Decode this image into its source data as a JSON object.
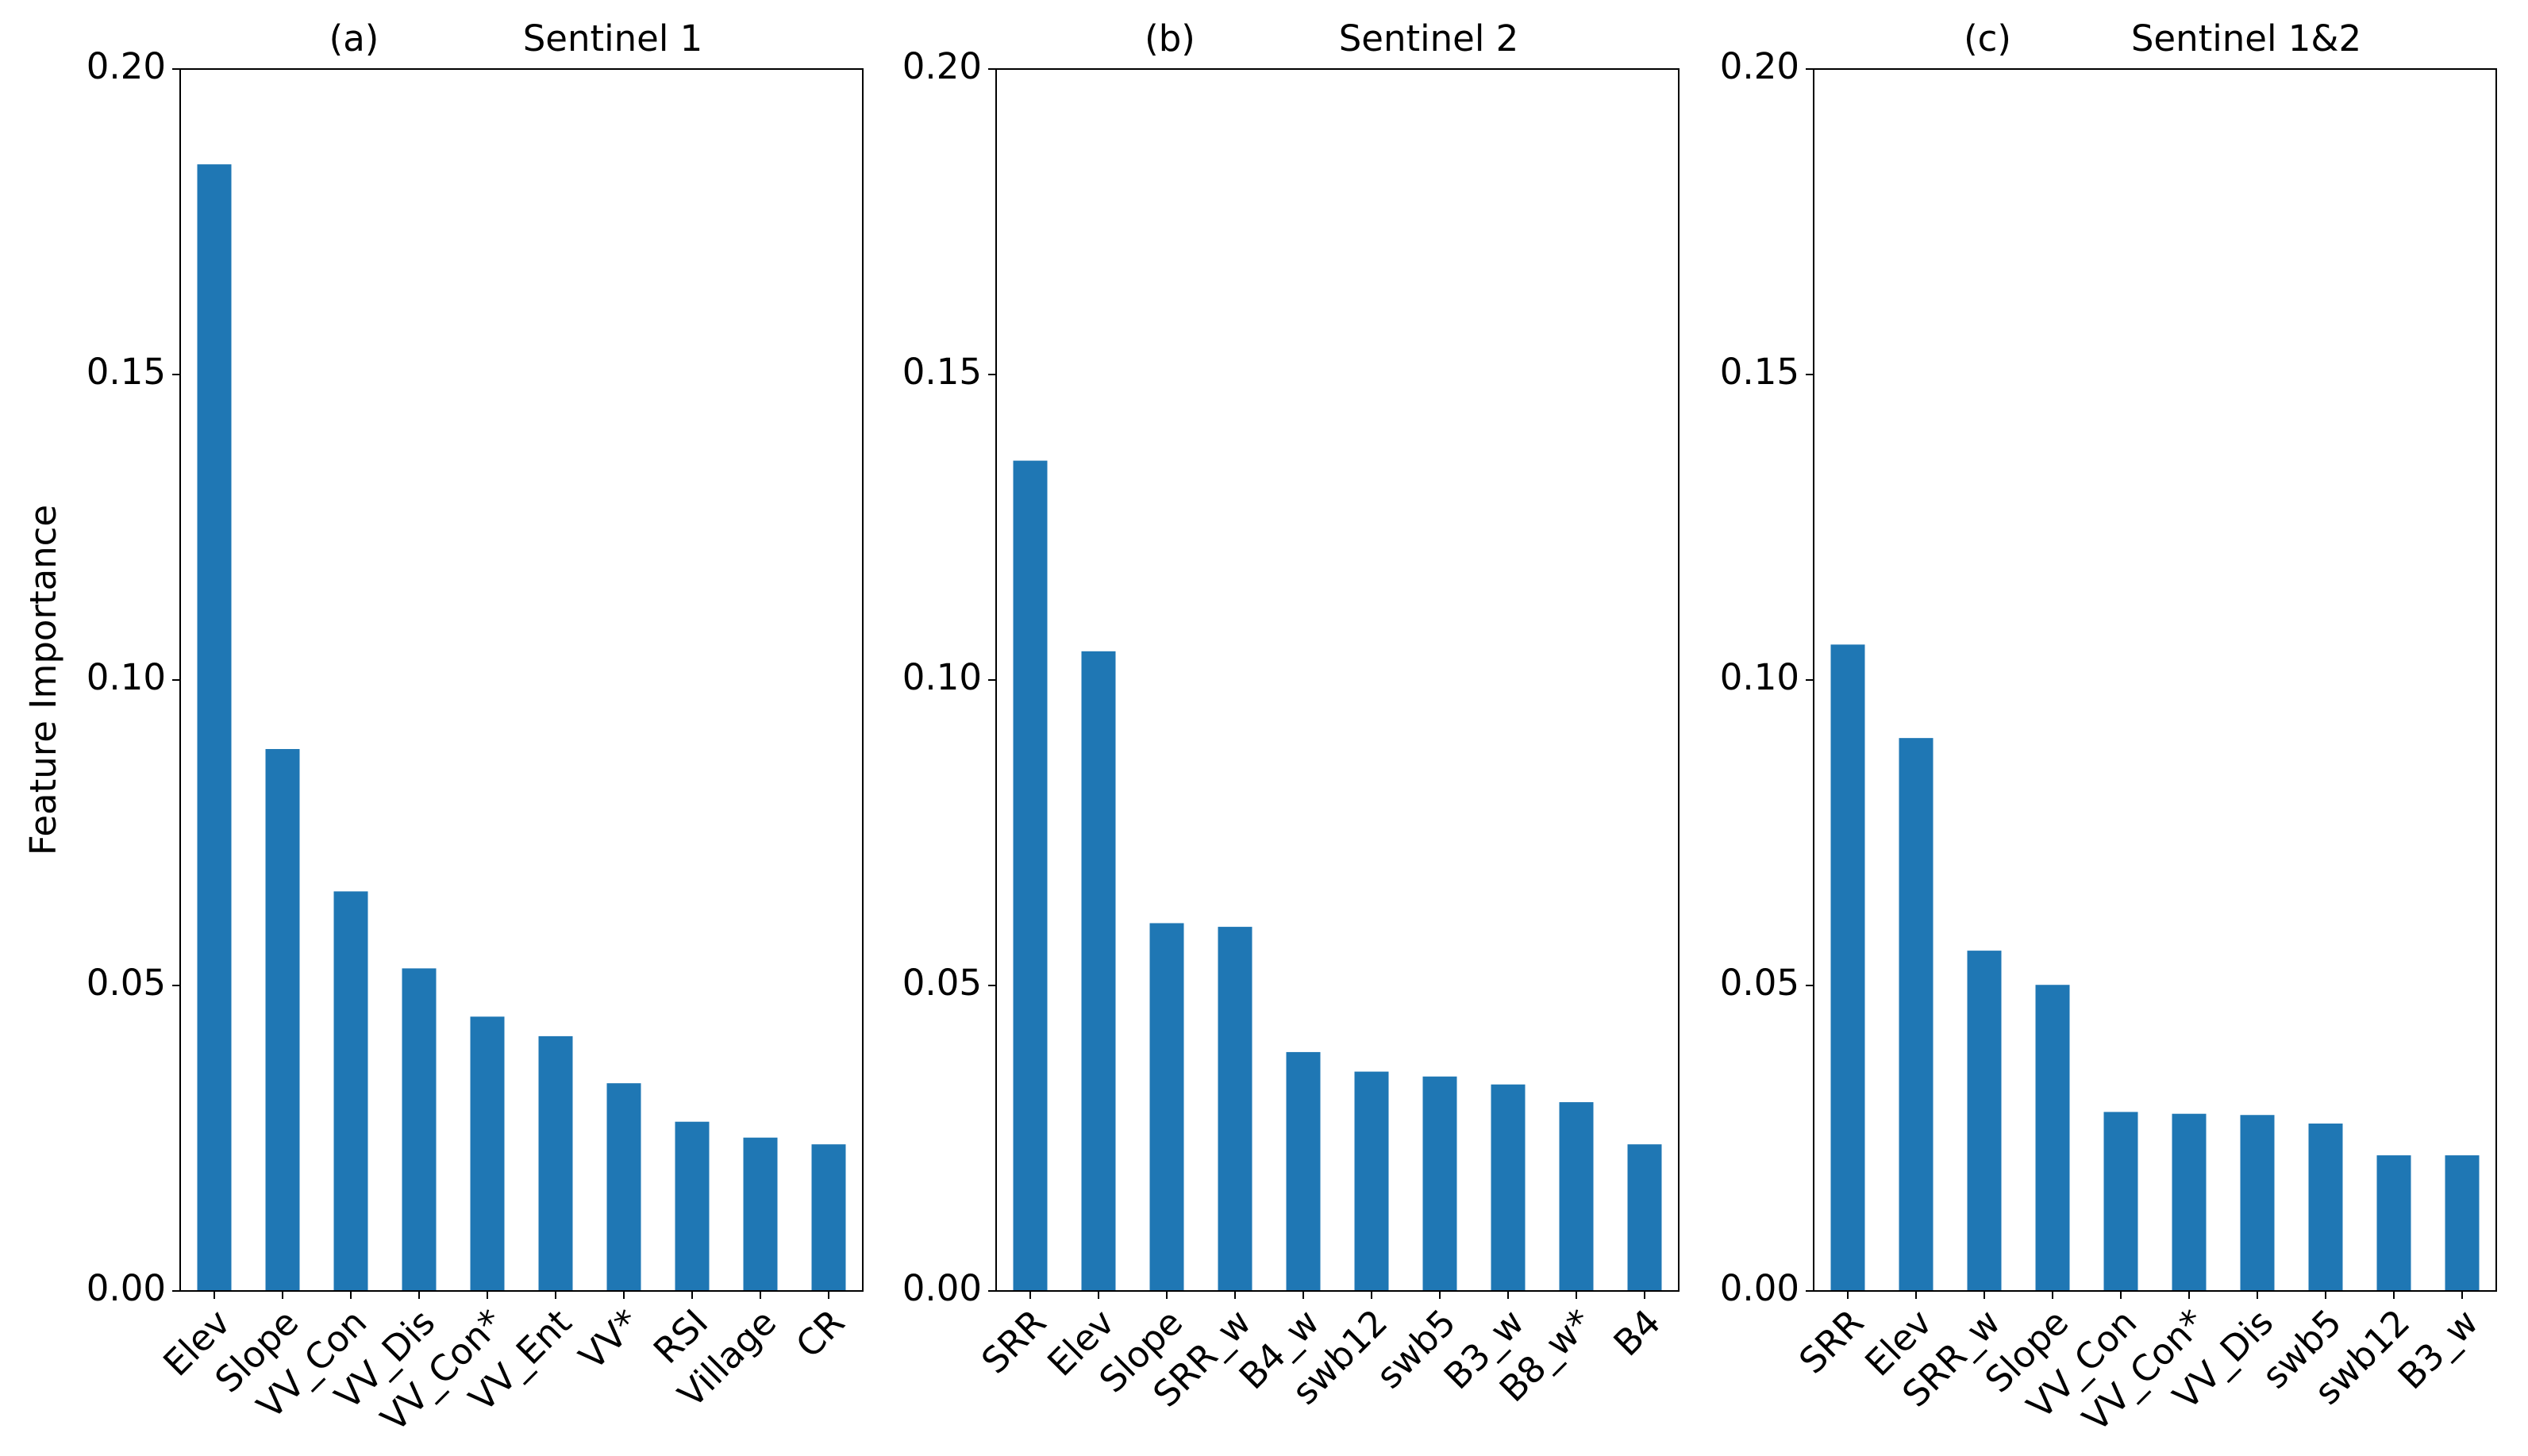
{
  "chart_data": [
    {
      "type": "bar",
      "panel": "(a)",
      "title": "Sentinel 1",
      "ylabel": "Feature Importance",
      "color": "#1f77b4",
      "categories": [
        "Elev",
        "Slope",
        "VV_Con",
        "VV_Dis",
        "VV_Con*",
        "VV_Ent",
        "VV*",
        "RSI",
        "Village",
        "CR"
      ],
      "values": [
        0.1844,
        0.0887,
        0.0654,
        0.0528,
        0.0449,
        0.0417,
        0.034,
        0.0277,
        0.0251,
        0.024
      ],
      "ylim": [
        0,
        0.2
      ],
      "yticks": [
        {
          "value": 0,
          "label": "0.00"
        },
        {
          "value": 0.05,
          "label": "0.05"
        },
        {
          "value": 0.1,
          "label": "0.10"
        },
        {
          "value": 0.15,
          "label": "0.15"
        },
        {
          "value": 0.2,
          "label": "0.20"
        }
      ]
    },
    {
      "type": "bar",
      "panel": "(b)",
      "title": "Sentinel 2",
      "color": "#1f77b4",
      "categories": [
        "SRR",
        "Elev",
        "Slope",
        "SRR_w",
        "B4_w",
        "swb12",
        "swb5",
        "B3_w",
        "B8_w*",
        "B4"
      ],
      "values": [
        0.1359,
        0.1047,
        0.0602,
        0.0596,
        0.0391,
        0.0359,
        0.0351,
        0.0338,
        0.0309,
        0.024
      ],
      "ylim": [
        0,
        0.2
      ],
      "yticks": [
        {
          "value": 0,
          "label": "0.00"
        },
        {
          "value": 0.05,
          "label": "0.05"
        },
        {
          "value": 0.1,
          "label": "0.10"
        },
        {
          "value": 0.15,
          "label": "0.15"
        },
        {
          "value": 0.2,
          "label": "0.20"
        }
      ]
    },
    {
      "type": "bar",
      "panel": "(c)",
      "title": "Sentinel 1&2",
      "color": "#1f77b4",
      "categories": [
        "SRR",
        "Elev",
        "SRR_w",
        "Slope",
        "VV_Con",
        "VV_Con*",
        "VV_Dis",
        "swb5",
        "swb12",
        "B3_w"
      ],
      "values": [
        0.1058,
        0.0905,
        0.0557,
        0.0501,
        0.0293,
        0.029,
        0.0288,
        0.0274,
        0.0222,
        0.0222
      ],
      "ylim": [
        0,
        0.2
      ],
      "yticks": [
        {
          "value": 0,
          "label": "0.00"
        },
        {
          "value": 0.05,
          "label": "0.05"
        },
        {
          "value": 0.1,
          "label": "0.10"
        },
        {
          "value": 0.15,
          "label": "0.15"
        },
        {
          "value": 0.2,
          "label": "0.20"
        }
      ]
    }
  ]
}
